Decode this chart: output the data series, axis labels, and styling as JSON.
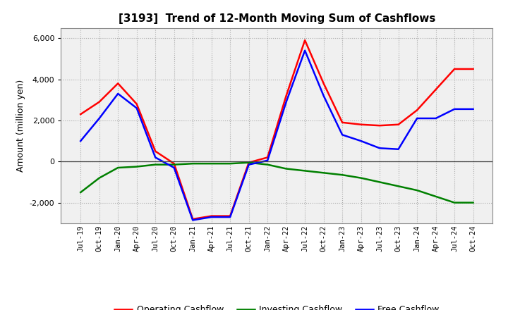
{
  "title": "[3193]  Trend of 12-Month Moving Sum of Cashflows",
  "ylabel": "Amount (million yen)",
  "background_color": "#ffffff",
  "plot_bg_color": "#f0f0f0",
  "grid_color": "#aaaaaa",
  "ylim": [
    -3000,
    6500
  ],
  "yticks": [
    -2000,
    0,
    2000,
    4000,
    6000
  ],
  "x_labels": [
    "Jul-19",
    "Oct-19",
    "Jan-20",
    "Apr-20",
    "Jul-20",
    "Oct-20",
    "Jan-21",
    "Apr-21",
    "Jul-21",
    "Oct-21",
    "Jan-22",
    "Apr-22",
    "Jul-22",
    "Oct-22",
    "Jan-23",
    "Apr-23",
    "Jul-23",
    "Oct-23",
    "Jan-24",
    "Apr-24",
    "Jul-24",
    "Oct-24"
  ],
  "operating": [
    2300,
    2900,
    3800,
    2800,
    500,
    -100,
    -2800,
    -2650,
    -2650,
    -50,
    200,
    3200,
    5900,
    3800,
    1900,
    1800,
    1750,
    1800,
    2500,
    3500,
    4500,
    4500
  ],
  "investing": [
    -1500,
    -800,
    -300,
    -250,
    -150,
    -150,
    -100,
    -100,
    -100,
    -50,
    -150,
    -350,
    -450,
    -550,
    -650,
    -800,
    -1000,
    -1200,
    -1400,
    -1700,
    -2000,
    -2000
  ],
  "free": [
    1000,
    2100,
    3300,
    2600,
    200,
    -300,
    -2850,
    -2700,
    -2700,
    -150,
    50,
    2900,
    5400,
    3200,
    1300,
    1000,
    650,
    600,
    2100,
    2100,
    2550,
    2550
  ],
  "operating_color": "#ff0000",
  "investing_color": "#008000",
  "free_color": "#0000ff",
  "line_width": 1.8
}
